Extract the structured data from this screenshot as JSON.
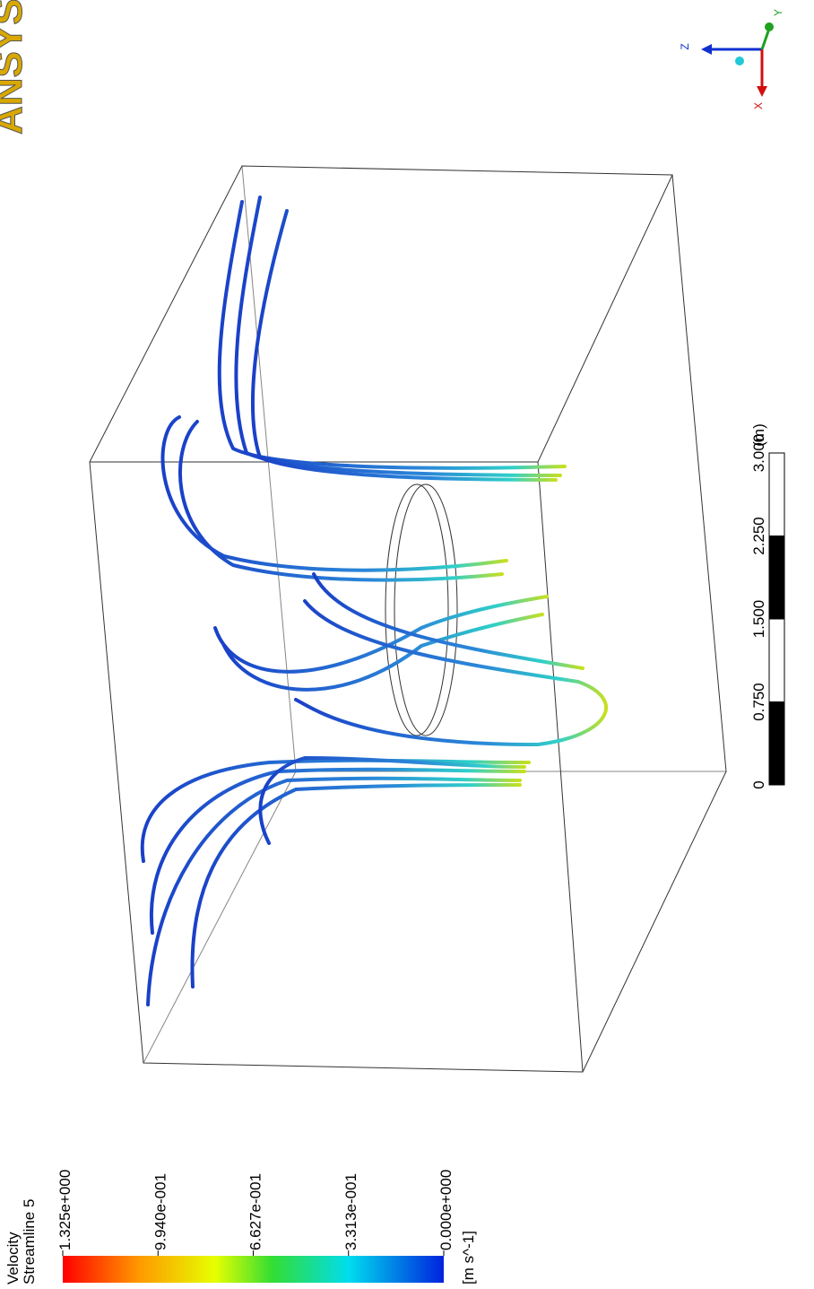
{
  "logo": "ANSYS",
  "legend": {
    "title": "Velocity",
    "subtitle": "Streamline 5",
    "labels": [
      "1.325e+000",
      "9.940e-001",
      "6.627e-001",
      "3.313e-001",
      "0.000e+000"
    ],
    "unit": "[m s^-1]"
  },
  "scale_bar": {
    "labels": [
      "0",
      "0.750",
      "1.500",
      "2.250",
      "3.000"
    ],
    "unit": "(m)"
  },
  "axes": {
    "x": "X",
    "y": "Y",
    "z": "Z"
  }
}
